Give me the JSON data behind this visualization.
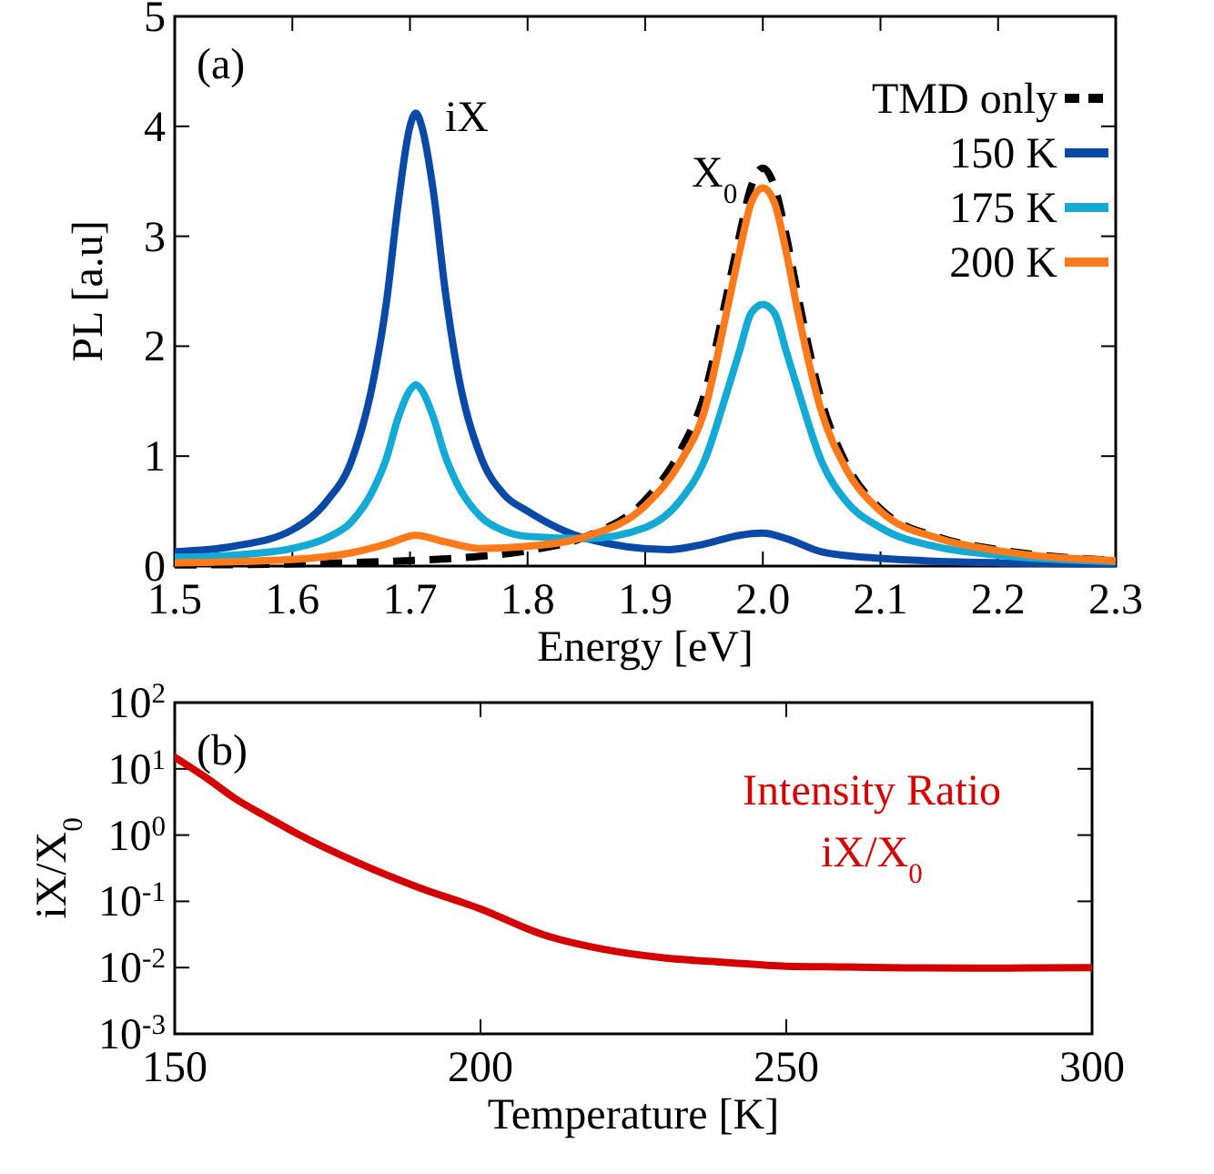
{
  "chart_data": [
    {
      "type": "line",
      "xlabel": "Energy [eV]",
      "ylabel": "PL [a.u]",
      "xlim": [
        1.5,
        2.3
      ],
      "ylim": [
        0,
        5
      ],
      "xticks": [
        1.5,
        1.6,
        1.7,
        1.8,
        1.9,
        {
          "value": 2,
          "label": "2.0"
        },
        2.1,
        2.2,
        2.3
      ],
      "yticks": [
        0,
        1,
        2,
        3,
        4,
        5
      ],
      "legend": "top right",
      "annotations": [
        "(a)",
        {
          "text": "iX",
          "x": 1.705,
          "y": 4.12
        },
        {
          "text": "X$_{0}$",
          "x": 2.0,
          "y": 3.62
        }
      ],
      "series": [
        {
          "name": "TMD only",
          "color": "#000000",
          "line_style": "dashed",
          "x": [
            1.5,
            1.6,
            1.7,
            1.75,
            1.8,
            1.85,
            1.9,
            1.93,
            1.95,
            1.97,
            1.98,
            1.99,
            2.0,
            2.01,
            2.02,
            2.03,
            2.05,
            2.07,
            2.1,
            2.15,
            2.2,
            2.3
          ],
          "values": [
            0.01,
            0.02,
            0.05,
            0.08,
            0.14,
            0.27,
            0.6,
            1.05,
            1.55,
            2.5,
            3.0,
            3.45,
            3.62,
            3.45,
            3.0,
            2.45,
            1.5,
            0.95,
            0.52,
            0.26,
            0.15,
            0.05
          ]
        },
        {
          "name": "150 K",
          "color": "#0a4aa6",
          "x": [
            1.5,
            1.55,
            1.6,
            1.63,
            1.65,
            1.67,
            1.68,
            1.69,
            1.7,
            1.705,
            1.71,
            1.72,
            1.73,
            1.74,
            1.76,
            1.78,
            1.8,
            1.85,
            1.92,
            1.95,
            1.98,
            2.0,
            2.02,
            2.05,
            2.1,
            2.2,
            2.3
          ],
          "values": [
            0.13,
            0.18,
            0.33,
            0.6,
            0.95,
            1.75,
            2.4,
            3.3,
            4.0,
            4.12,
            4.0,
            3.4,
            2.5,
            1.8,
            1.0,
            0.65,
            0.5,
            0.25,
            0.15,
            0.2,
            0.28,
            0.3,
            0.25,
            0.13,
            0.07,
            0.03,
            0.02
          ]
        },
        {
          "name": "175 K",
          "color": "#14aad6",
          "x": [
            1.5,
            1.55,
            1.6,
            1.63,
            1.65,
            1.67,
            1.68,
            1.69,
            1.7,
            1.705,
            1.71,
            1.72,
            1.73,
            1.74,
            1.76,
            1.78,
            1.8,
            1.85,
            1.9,
            1.93,
            1.95,
            1.97,
            1.98,
            1.99,
            2.0,
            2.01,
            2.02,
            2.03,
            2.05,
            2.07,
            2.1,
            2.15,
            2.2,
            2.3
          ],
          "values": [
            0.08,
            0.1,
            0.16,
            0.26,
            0.4,
            0.72,
            0.98,
            1.35,
            1.6,
            1.65,
            1.6,
            1.35,
            1.0,
            0.75,
            0.45,
            0.32,
            0.27,
            0.25,
            0.35,
            0.6,
            0.95,
            1.6,
            1.95,
            2.3,
            2.38,
            2.3,
            1.95,
            1.6,
            0.95,
            0.6,
            0.35,
            0.17,
            0.1,
            0.04
          ]
        },
        {
          "name": "200 K",
          "color": "#ff7a1a",
          "x": [
            1.5,
            1.6,
            1.65,
            1.68,
            1.705,
            1.73,
            1.76,
            1.8,
            1.85,
            1.9,
            1.93,
            1.95,
            1.97,
            1.98,
            1.99,
            2.0,
            2.01,
            2.02,
            2.03,
            2.05,
            2.07,
            2.1,
            2.15,
            2.2,
            2.3
          ],
          "values": [
            0.03,
            0.06,
            0.12,
            0.2,
            0.28,
            0.22,
            0.16,
            0.18,
            0.27,
            0.55,
            0.95,
            1.4,
            2.35,
            2.85,
            3.3,
            3.44,
            3.3,
            2.85,
            2.3,
            1.4,
            0.9,
            0.5,
            0.25,
            0.14,
            0.05
          ]
        }
      ]
    },
    {
      "type": "line",
      "xlabel": "Temperature [K]",
      "ylabel": "iX/X$_{0}$",
      "xlim": [
        150,
        300
      ],
      "ylim": [
        0.001,
        100
      ],
      "log": "y",
      "xticks": [
        150,
        200,
        250,
        300
      ],
      "yticks": [
        {
          "value": 0.001,
          "label": "10$^{-3}$"
        },
        {
          "value": 0.01,
          "label": "10$^{-2}$"
        },
        {
          "value": 0.1,
          "label": "10$^{-1}$"
        },
        {
          "value": 1,
          "label": "10$^{0}$"
        },
        {
          "value": 10,
          "label": "10$^{1}$"
        },
        {
          "value": 100,
          "label": "10$^{2}$"
        }
      ],
      "annotations": [
        "(b)"
      ],
      "series": [
        {
          "name": "Intensity Ratio iX/X$_{0}$",
          "color": "#d40000",
          "x": [
            150,
            155,
            160,
            165,
            170,
            180,
            190,
            200,
            210,
            220,
            230,
            240,
            250,
            260,
            270,
            280,
            290,
            300
          ],
          "values": [
            15,
            7.5,
            3.5,
            1.9,
            1.05,
            0.38,
            0.16,
            0.077,
            0.032,
            0.019,
            0.014,
            0.012,
            0.0105,
            0.0102,
            0.0099,
            0.0098,
            0.0099,
            0.01
          ]
        }
      ]
    }
  ]
}
